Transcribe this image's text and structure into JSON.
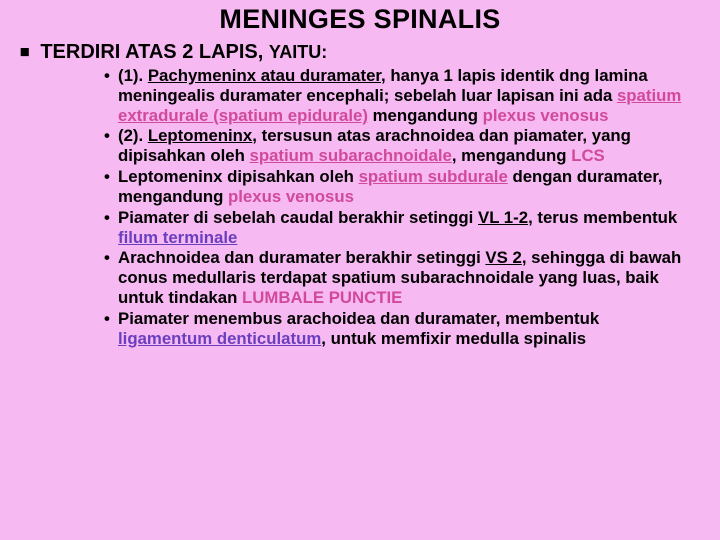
{
  "colors": {
    "background": "#f7b9f2",
    "text": "#000000",
    "accent1": "#d14a9a",
    "accent2": "#6a3fbf"
  },
  "title": "MENINGES SPINALIS",
  "subhead_plain": "TERDIRI ATAS 2 LAPIS, ",
  "subhead_small": "YAITU:",
  "bullets": [
    {
      "pre": "(1). ",
      "u1": "Pachymeninx atau duramater",
      "mid1": ", hanya 1 lapis identik dng lamina meningealis duramater encephali; sebelah luar lapisan ini ada ",
      "accent1_u": "spatium extradurale (spatium epidurale)",
      "mid2": " mengandung ",
      "accent1b": "plexus venosus"
    },
    {
      "pre": "(2). ",
      "u1": "Leptomeninx",
      "mid1": ", tersusun atas arachnoidea dan piamater, yang dipisahkan oleh ",
      "accent1_u": "spatium subarachnoidale",
      "mid2": ", mengandung ",
      "accent1b": "LCS"
    },
    {
      "pre": "Leptomeninx dipisahkan oleh ",
      "accent1_u": "spatium subdurale",
      "mid1": " dengan duramater, mengandung ",
      "accent1b": "plexus venosus"
    },
    {
      "pre": "Piamater di sebelah caudal berakhir setinggi ",
      "u1": "VL 1-2",
      "mid1": ", terus membentuk ",
      "accent2_u": "filum terminale"
    },
    {
      "pre": "Arachnoidea dan duramater berakhir setinggi ",
      "u1": "VS 2",
      "mid1": ", sehingga di bawah conus medullaris terdapat spatium subarachnoidale yang luas, baik untuk tindakan ",
      "accent1b": "LUMBALE PUNCTIE"
    },
    {
      "pre": "Piamater menembus arachoidea dan duramater, membentuk ",
      "accent2_u": "ligamentum denticulatum",
      "mid1": ", untuk memfixir medulla spinalis"
    }
  ]
}
